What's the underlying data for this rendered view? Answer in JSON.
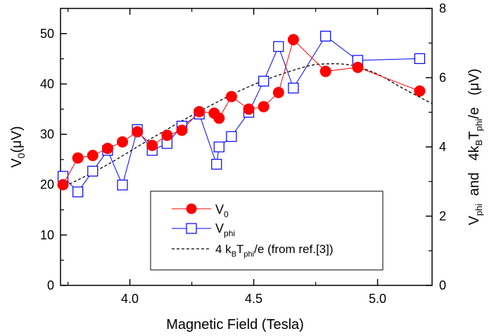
{
  "chart_data": {
    "type": "scatter",
    "xlabel": "Magnetic Field (Tesla)",
    "ylabel_left": {
      "main": "V",
      "sub": "0",
      "rest": "(μV)"
    },
    "ylabel_right": {
      "p1": "V",
      "s1": "phi",
      "p2": "  and   4k",
      "s2": "B",
      "p3": "T",
      "s3": "phi",
      "p4": "/e   (μV)"
    },
    "xlim": [
      3.72,
      5.22
    ],
    "ylim_left": [
      0,
      55
    ],
    "ylim_right": [
      0,
      8
    ],
    "xticks": [
      4.0,
      4.5,
      5.0
    ],
    "xtick_labels": [
      "4.0",
      "4.5",
      "5.0"
    ],
    "yticks_left": [
      0,
      10,
      20,
      30,
      40,
      50
    ],
    "yticks_left_labels": [
      "0",
      "10",
      "20",
      "30",
      "40",
      "50"
    ],
    "yticks_right": [
      0,
      2,
      4,
      6,
      8
    ],
    "yticks_right_labels": [
      "0",
      "2",
      "4",
      "6",
      "8"
    ],
    "grid": false,
    "legend_position": "lower-center",
    "series": [
      {
        "name_main": "V",
        "name_sub": "0",
        "axis": "left",
        "marker": "filled-circle",
        "color": "#ff0000",
        "x": [
          3.73,
          3.79,
          3.85,
          3.91,
          3.97,
          4.03,
          4.09,
          4.15,
          4.21,
          4.28,
          4.34,
          4.36,
          4.41,
          4.48,
          4.54,
          4.6,
          4.66,
          4.79,
          4.92,
          5.17
        ],
        "y": [
          20.0,
          25.3,
          25.8,
          27.2,
          28.5,
          30.5,
          27.8,
          29.8,
          30.8,
          34.5,
          34.2,
          33.2,
          37.5,
          35.0,
          35.5,
          38.3,
          48.8,
          42.5,
          43.3,
          38.6
        ]
      },
      {
        "name_main": "V",
        "name_sub": "phi",
        "axis": "right",
        "marker": "open-square",
        "color": "#0000ff",
        "x": [
          3.73,
          3.79,
          3.85,
          3.91,
          3.97,
          4.03,
          4.09,
          4.15,
          4.21,
          4.28,
          4.35,
          4.36,
          4.41,
          4.48,
          4.54,
          4.6,
          4.66,
          4.79,
          4.92,
          5.17
        ],
        "y": [
          3.15,
          2.7,
          3.3,
          3.9,
          2.9,
          4.5,
          3.9,
          4.1,
          4.6,
          4.95,
          3.5,
          4.0,
          4.3,
          5.0,
          5.9,
          6.9,
          5.7,
          7.2,
          6.5,
          6.55
        ]
      },
      {
        "name": "4 k_B T_phi/e (from ref.[3])",
        "name_parts": [
          "4 k",
          "B",
          "T",
          "phi",
          "/e (from ref.[3])"
        ],
        "axis": "right",
        "style": "dashed",
        "color": "#000000",
        "x": [
          3.72,
          3.9,
          4.1,
          4.3,
          4.5,
          4.7,
          4.8,
          4.9,
          5.0,
          5.1,
          5.22
        ],
        "y": [
          2.8,
          3.45,
          4.3,
          5.1,
          5.8,
          6.3,
          6.4,
          6.35,
          6.1,
          5.7,
          5.25
        ]
      }
    ]
  }
}
